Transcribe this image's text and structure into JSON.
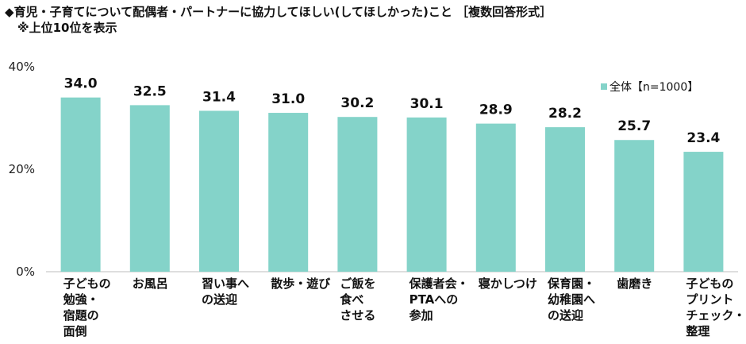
{
  "title": "◆育児・子育てについて配偶者・パートナーに協力してほしい(してほしかった)こと ［複数回答形式］",
  "subtitle": "※上位10位を表示",
  "chart_data": {
    "type": "bar",
    "categories": [
      [
        "子どもの",
        "勉強・",
        "宿題の",
        "面倒"
      ],
      [
        "お風呂"
      ],
      [
        "習い事へ",
        "の送迎"
      ],
      [
        "散歩・遊び"
      ],
      [
        "ご飯を",
        "食べ",
        "させる"
      ],
      [
        "保護者会・",
        "PTAへの",
        "参加"
      ],
      [
        "寝かしつけ"
      ],
      [
        "保育園・",
        "幼稚園へ",
        "の送迎"
      ],
      [
        "歯磨き"
      ],
      [
        "子どもの",
        "プリント",
        "チェック・",
        "整理"
      ]
    ],
    "series": [
      {
        "name": "全体【n=1000】",
        "values": [
          34.0,
          32.5,
          31.4,
          31.0,
          30.2,
          30.1,
          28.9,
          28.2,
          25.7,
          23.4
        ]
      }
    ],
    "value_labels": [
      "34.0",
      "32.5",
      "31.4",
      "31.0",
      "30.2",
      "30.1",
      "28.9",
      "28.2",
      "25.7",
      "23.4"
    ],
    "yticks": [
      "0%",
      "20%",
      "40%"
    ],
    "ylim": [
      0,
      40
    ],
    "legend_position": "top-right",
    "bar_color": "#84d3c9"
  }
}
